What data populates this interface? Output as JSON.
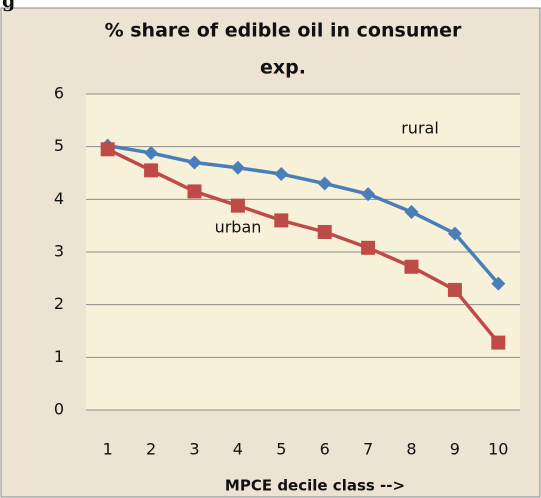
{
  "chart_data": {
    "type": "line",
    "corner_text": "g",
    "title": [
      "% share of edible oil in consumer",
      "exp."
    ],
    "x_label": "MPCE decile class -->",
    "categories": [
      "1",
      "2",
      "3",
      "4",
      "5",
      "6",
      "7",
      "8",
      "9",
      "10"
    ],
    "series": [
      {
        "name": "rural",
        "color": "#4a7ebb",
        "marker": "diamond",
        "values": [
          5.02,
          4.88,
          4.7,
          4.6,
          4.48,
          4.3,
          4.1,
          3.76,
          3.35,
          2.4
        ]
      },
      {
        "name": "urban",
        "color": "#be4b48",
        "marker": "square",
        "values": [
          4.95,
          4.55,
          4.15,
          3.88,
          3.6,
          3.38,
          3.08,
          2.72,
          2.28,
          1.28
        ]
      }
    ],
    "ylim": [
      0,
      6
    ],
    "yticks": [
      0,
      1,
      2,
      3,
      4,
      5,
      6
    ],
    "grid": true
  }
}
